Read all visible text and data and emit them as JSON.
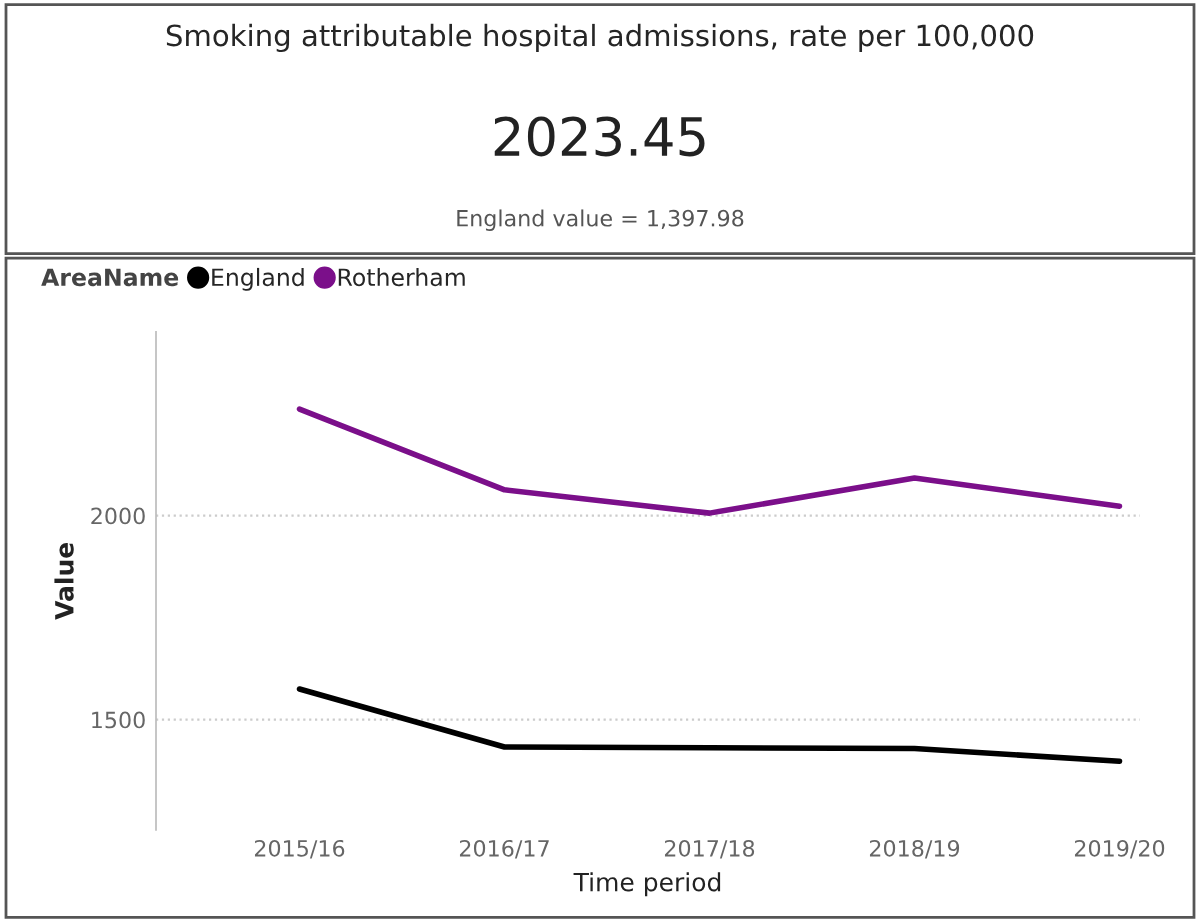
{
  "chart_data": [
    {
      "type": "other",
      "title": "Smoking attributable hospital admissions, rate per 100,000",
      "annotations": [
        "2023.45",
        "England value = 1,397.98"
      ]
    },
    {
      "type": "line",
      "xlabel": "Time period",
      "ylabel": "Value",
      "legend_title": "AreaName",
      "legend": "top left",
      "grid": "y",
      "line_style": "solid",
      "categories": [
        "2015/16",
        "2016/17",
        "2017/18",
        "2018/19",
        "2019/20"
      ],
      "ylim": [
        1230,
        2450
      ],
      "yticks": [
        1500,
        2000
      ],
      "series": [
        {
          "name": "England",
          "color": "#000000",
          "values": [
            1575,
            1433,
            1431,
            1429,
            1398
          ]
        },
        {
          "name": "Rotherham",
          "color": "#7b0f8a",
          "values": [
            2261,
            2063,
            2006,
            2092,
            2023
          ]
        }
      ]
    }
  ]
}
